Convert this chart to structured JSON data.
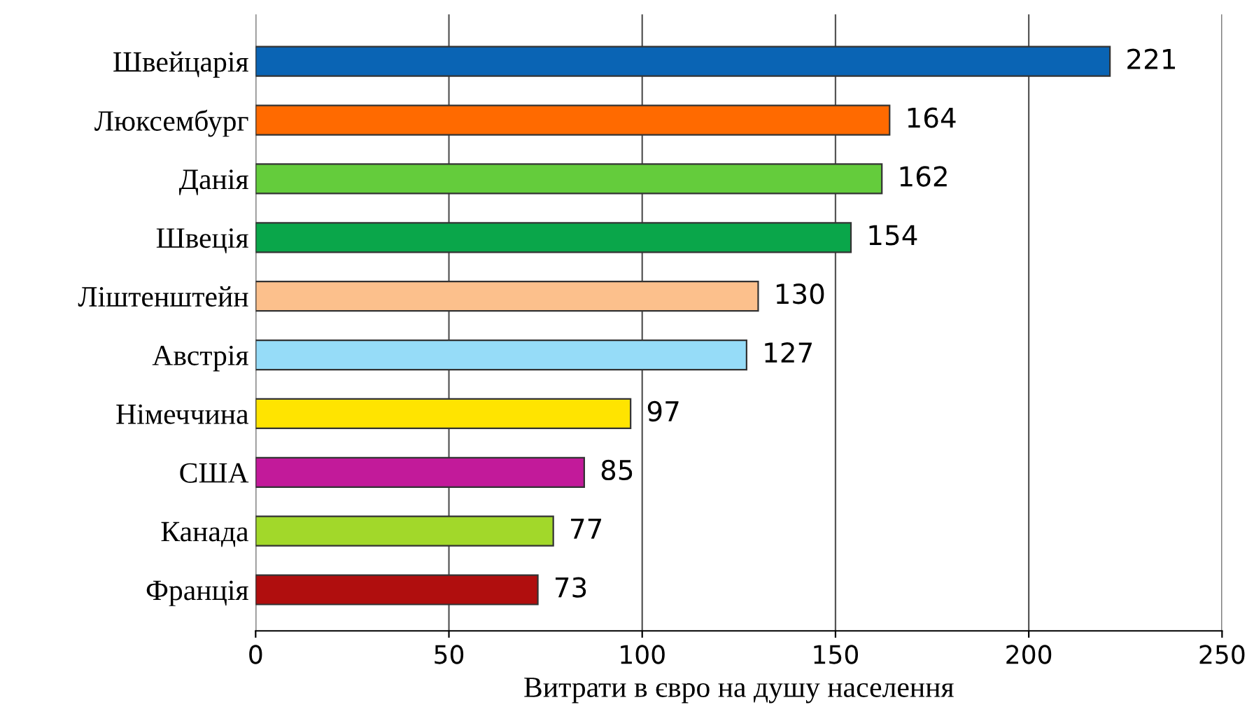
{
  "chart_data": {
    "type": "bar",
    "orientation": "horizontal",
    "xlabel": "Витрати в євро на душу населення",
    "categories": [
      "Швейцарія",
      "Люксембург",
      "Данія",
      "Швеція",
      "Ліштенштейн",
      "Австрія",
      "Німеччина",
      "США",
      "Канада",
      "Франція"
    ],
    "values": [
      221,
      164,
      162,
      154,
      130,
      127,
      97,
      85,
      77,
      73
    ],
    "colors": [
      "#0a64b4",
      "#ff6a00",
      "#64cc3c",
      "#0aa64a",
      "#fcc08c",
      "#96dcf8",
      "#ffe400",
      "#c21a9a",
      "#a2d82a",
      "#b00e0e"
    ],
    "xlim": [
      0,
      250
    ],
    "xticks": [
      0,
      50,
      100,
      150,
      200,
      250
    ],
    "grid": "x",
    "data_labels": true
  }
}
